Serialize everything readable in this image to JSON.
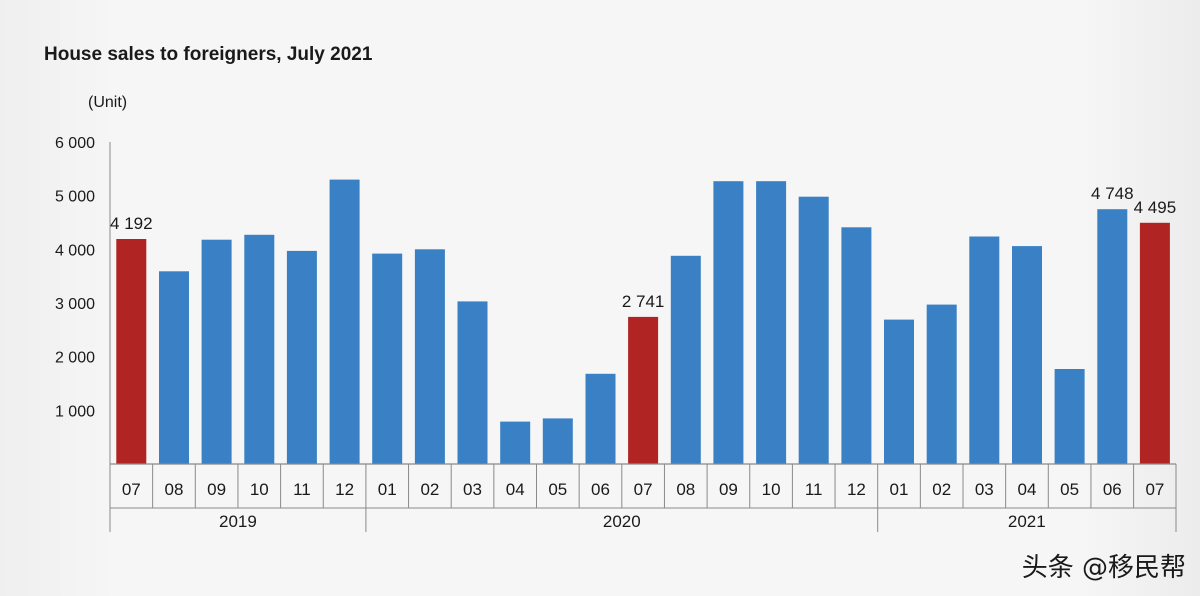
{
  "chart_data": {
    "type": "bar",
    "title": "House sales to foreigners, July 2021",
    "ylabel": "(Unit)",
    "ylim": [
      0,
      6000
    ],
    "yticks": [
      {
        "value": 1000,
        "label": "1 000"
      },
      {
        "value": 2000,
        "label": "2 000"
      },
      {
        "value": 3000,
        "label": "3 000"
      },
      {
        "value": 4000,
        "label": "4 000"
      },
      {
        "value": 5000,
        "label": "5 000"
      },
      {
        "value": 6000,
        "label": "6 000"
      }
    ],
    "categories": [
      "07",
      "08",
      "09",
      "10",
      "11",
      "12",
      "01",
      "02",
      "03",
      "04",
      "05",
      "06",
      "07",
      "08",
      "09",
      "10",
      "11",
      "12",
      "01",
      "02",
      "03",
      "04",
      "05",
      "06",
      "07"
    ],
    "values": [
      4192,
      3590,
      4180,
      4270,
      3970,
      5300,
      3920,
      4000,
      3030,
      790,
      850,
      1680,
      2741,
      3880,
      5270,
      5270,
      4980,
      4410,
      2690,
      2970,
      4240,
      4060,
      1770,
      4748,
      4495
    ],
    "highlight": [
      0,
      12,
      24
    ],
    "data_labels": [
      {
        "index": 0,
        "text": "4 192"
      },
      {
        "index": 12,
        "text": "2 741"
      },
      {
        "index": 23,
        "text": "4 748"
      },
      {
        "index": 24,
        "text": "4 495"
      }
    ],
    "year_groups": [
      {
        "label": "2019",
        "start": 0,
        "end": 5
      },
      {
        "label": "2020",
        "start": 6,
        "end": 17
      },
      {
        "label": "2021",
        "start": 18,
        "end": 24
      }
    ],
    "colors": {
      "bar": "#3a80c4",
      "highlight": "#b02424",
      "axis": "#8a8a8a"
    },
    "grid": false
  },
  "watermark": "头条 @移民帮"
}
